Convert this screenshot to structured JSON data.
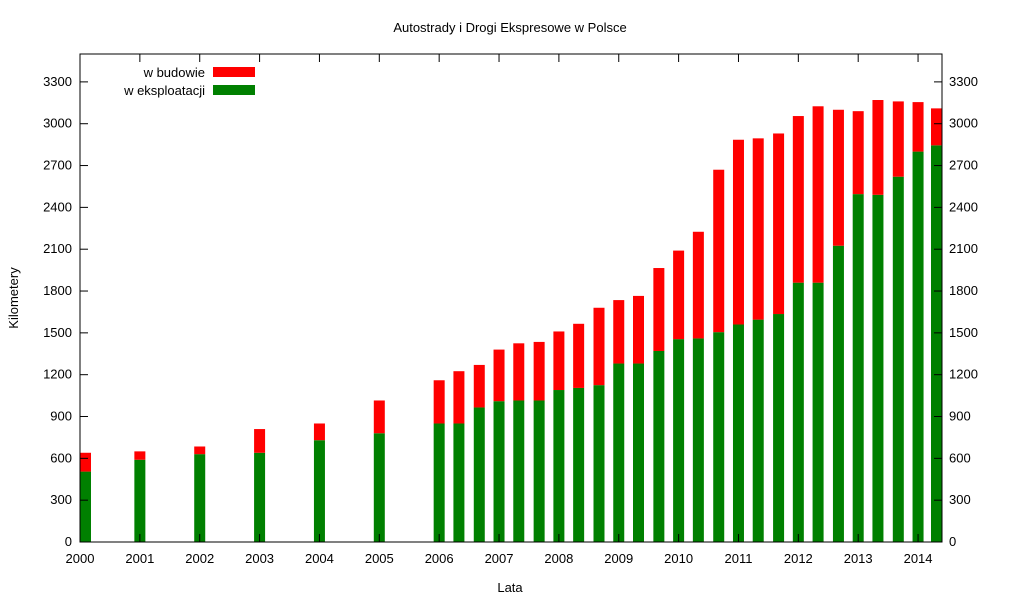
{
  "chart_data": {
    "type": "bar",
    "stacked": true,
    "title": "Autostrady i Drogi Ekspresowe w Polsce",
    "xlabel": "Lata",
    "ylabel": "Kilometery",
    "xlim": [
      2000,
      2014.4
    ],
    "ylim": [
      0,
      3500
    ],
    "yticks": [
      0,
      300,
      600,
      900,
      1200,
      1500,
      1800,
      2100,
      2400,
      2700,
      3000,
      3300
    ],
    "xticks": [
      2000,
      2001,
      2002,
      2003,
      2004,
      2005,
      2006,
      2007,
      2008,
      2009,
      2010,
      2011,
      2012,
      2013,
      2014
    ],
    "grid": false,
    "legend_position": "top-left",
    "series": [
      {
        "name": "w eksploatacji",
        "color": "#008000",
        "x": [
          2000,
          2001,
          2002,
          2003,
          2004,
          2005,
          2006,
          2006.33,
          2006.67,
          2007,
          2007.33,
          2007.67,
          2008,
          2008.33,
          2008.67,
          2009,
          2009.33,
          2009.67,
          2010,
          2010.33,
          2010.67,
          2011,
          2011.33,
          2011.67,
          2012,
          2012.33,
          2012.67,
          2013,
          2013.33,
          2013.67,
          2014,
          2014.33
        ],
        "values": [
          505,
          590,
          630,
          640,
          730,
          780,
          850,
          850,
          965,
          1010,
          1015,
          1015,
          1090,
          1105,
          1125,
          1280,
          1280,
          1370,
          1455,
          1460,
          1505,
          1560,
          1595,
          1635,
          1860,
          1860,
          2125,
          2495,
          2490,
          2620,
          2800,
          2845
        ]
      },
      {
        "name": "w budowie",
        "color": "#ff0000",
        "x": [
          2000,
          2001,
          2002,
          2003,
          2004,
          2005,
          2006,
          2006.33,
          2006.67,
          2007,
          2007.33,
          2007.67,
          2008,
          2008.33,
          2008.67,
          2009,
          2009.33,
          2009.67,
          2010,
          2010.33,
          2010.67,
          2011,
          2011.33,
          2011.67,
          2012,
          2012.33,
          2012.67,
          2013,
          2013.33,
          2013.67,
          2014,
          2014.33
        ],
        "values": [
          135,
          60,
          55,
          170,
          120,
          235,
          310,
          375,
          305,
          370,
          410,
          420,
          420,
          460,
          555,
          455,
          485,
          595,
          635,
          765,
          1165,
          1325,
          1300,
          1295,
          1195,
          1265,
          975,
          595,
          680,
          540,
          355,
          265
        ]
      }
    ]
  }
}
